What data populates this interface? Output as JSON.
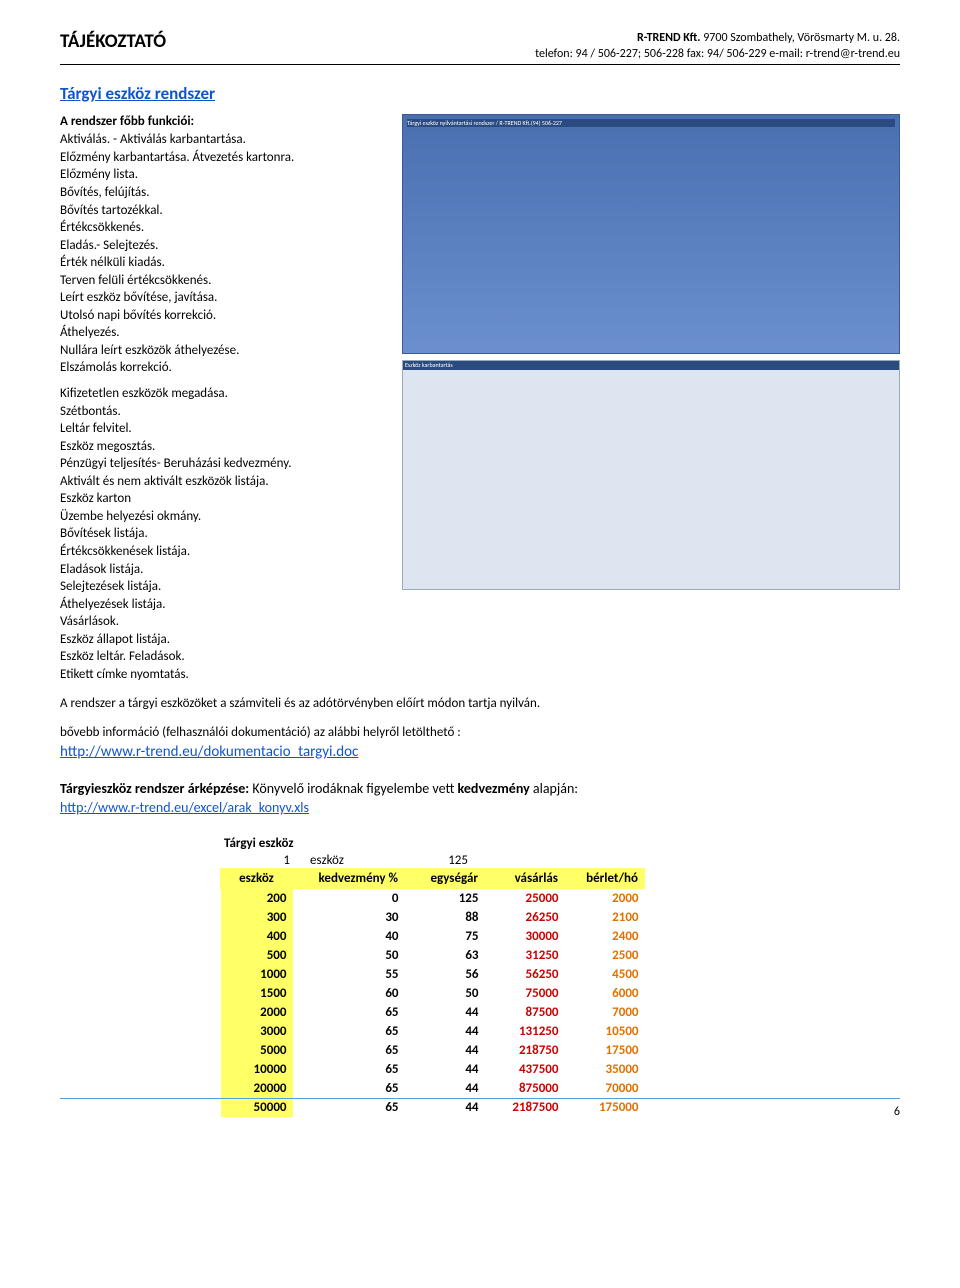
{
  "header": {
    "doc_title": "TÁJÉKOZTATÓ",
    "company_line": "R-TREND Kft. 9700 Szombathely, Vörösmarty M. u. 28.",
    "r_trend_bold": "R-TREND Kft.",
    "company_rest": " 9700 Szombathely, Vörösmarty M. u. 28.",
    "contact_line": "telefon: 94 / 506-227; 506-228 fax: 94/ 506-229 e-mail: r-trend@r-trend.eu"
  },
  "main_link": "Tárgyi eszköz rendszer",
  "func": {
    "intro": "A rendszer főbb funkciói:",
    "items_block1": [
      "Aktiválás. - Aktiválás karbantartása.",
      "Előzmény karbantartása. Átvezetés kartonra.",
      "Előzmény lista.",
      "Bővítés, felújítás.",
      "Bővítés tartozékkal.",
      "Értékcsökkenés.",
      "Eladás.- Selejtezés.",
      "Érték nélküli kiadás.",
      "Terven felüli értékcsökkenés.",
      "Leírt eszköz bővítése, javítása.",
      "Utolsó napi bővítés korrekció.",
      "Áthelyezés.",
      "Nullára leírt eszközök áthelyezése.",
      "Elszámolás korrekció."
    ],
    "items_block2": [
      "Kifizetetlen eszközök megadása.",
      "Szétbontás.",
      "Leltár felvitel.",
      "Eszköz megosztás.",
      "Pénzügyi teljesítés- Beruházási kedvezmény.",
      "Aktivált és nem aktivált eszközök listája.",
      "Eszköz karton",
      "Üzembe helyezési okmány.",
      "Bővítések listája.",
      "Értékcsökkenések listája.",
      "Eladások listája.",
      "Selejtezések listája.",
      "Áthelyezések listája.",
      "Vásárlások.",
      "Eszköz állapot listája.",
      "Eszköz leltár. Feladások.",
      "Etikett címke nyomtatás."
    ]
  },
  "body": {
    "p1": "A rendszer a tárgyi eszközöket a számviteli és az adótörvényben előírt módon tartja nyilván.",
    "p2": "bővebb információ (felhasználói dokumentáció)  az alábbi helyről letölthető :",
    "link1": "http://www.r-trend.eu/dokumentacio_targyi.doc",
    "price_head_bold": "Tárgyieszköz rendszer árképzése:",
    "price_head_rest": "  Könyvelő irodáknak figyelembe vett ",
    "price_head_bold2": "kedvezmény",
    "price_head_rest2": " alapján:",
    "link2": "http://www.r-trend.eu/excel/arak_konyv.xls"
  },
  "pricing": {
    "label": "Tárgyi eszköz",
    "meta_a": "1",
    "meta_b": "eszköz",
    "meta_c": "125",
    "headers": [
      "eszköz",
      "kedvezmény %",
      "egységár",
      "vásárlás",
      "bérlet/hó"
    ],
    "rows": [
      {
        "esz": "200",
        "kedv": "0",
        "egy": "125",
        "vas": "25000",
        "ber": "2000"
      },
      {
        "esz": "300",
        "kedv": "30",
        "egy": "88",
        "vas": "26250",
        "ber": "2100"
      },
      {
        "esz": "400",
        "kedv": "40",
        "egy": "75",
        "vas": "30000",
        "ber": "2400"
      },
      {
        "esz": "500",
        "kedv": "50",
        "egy": "63",
        "vas": "31250",
        "ber": "2500"
      },
      {
        "esz": "1000",
        "kedv": "55",
        "egy": "56",
        "vas": "56250",
        "ber": "4500"
      },
      {
        "esz": "1500",
        "kedv": "60",
        "egy": "50",
        "vas": "75000",
        "ber": "6000"
      },
      {
        "esz": "2000",
        "kedv": "65",
        "egy": "44",
        "vas": "87500",
        "ber": "7000"
      },
      {
        "esz": "3000",
        "kedv": "65",
        "egy": "44",
        "vas": "131250",
        "ber": "10500"
      },
      {
        "esz": "5000",
        "kedv": "65",
        "egy": "44",
        "vas": "218750",
        "ber": "17500"
      },
      {
        "esz": "10000",
        "kedv": "65",
        "egy": "44",
        "vas": "437500",
        "ber": "35000"
      },
      {
        "esz": "20000",
        "kedv": "65",
        "egy": "44",
        "vas": "875000",
        "ber": "70000"
      },
      {
        "esz": "50000",
        "kedv": "65",
        "egy": "44",
        "vas": "2187500",
        "ber": "175000"
      }
    ]
  },
  "page_number": "6"
}
